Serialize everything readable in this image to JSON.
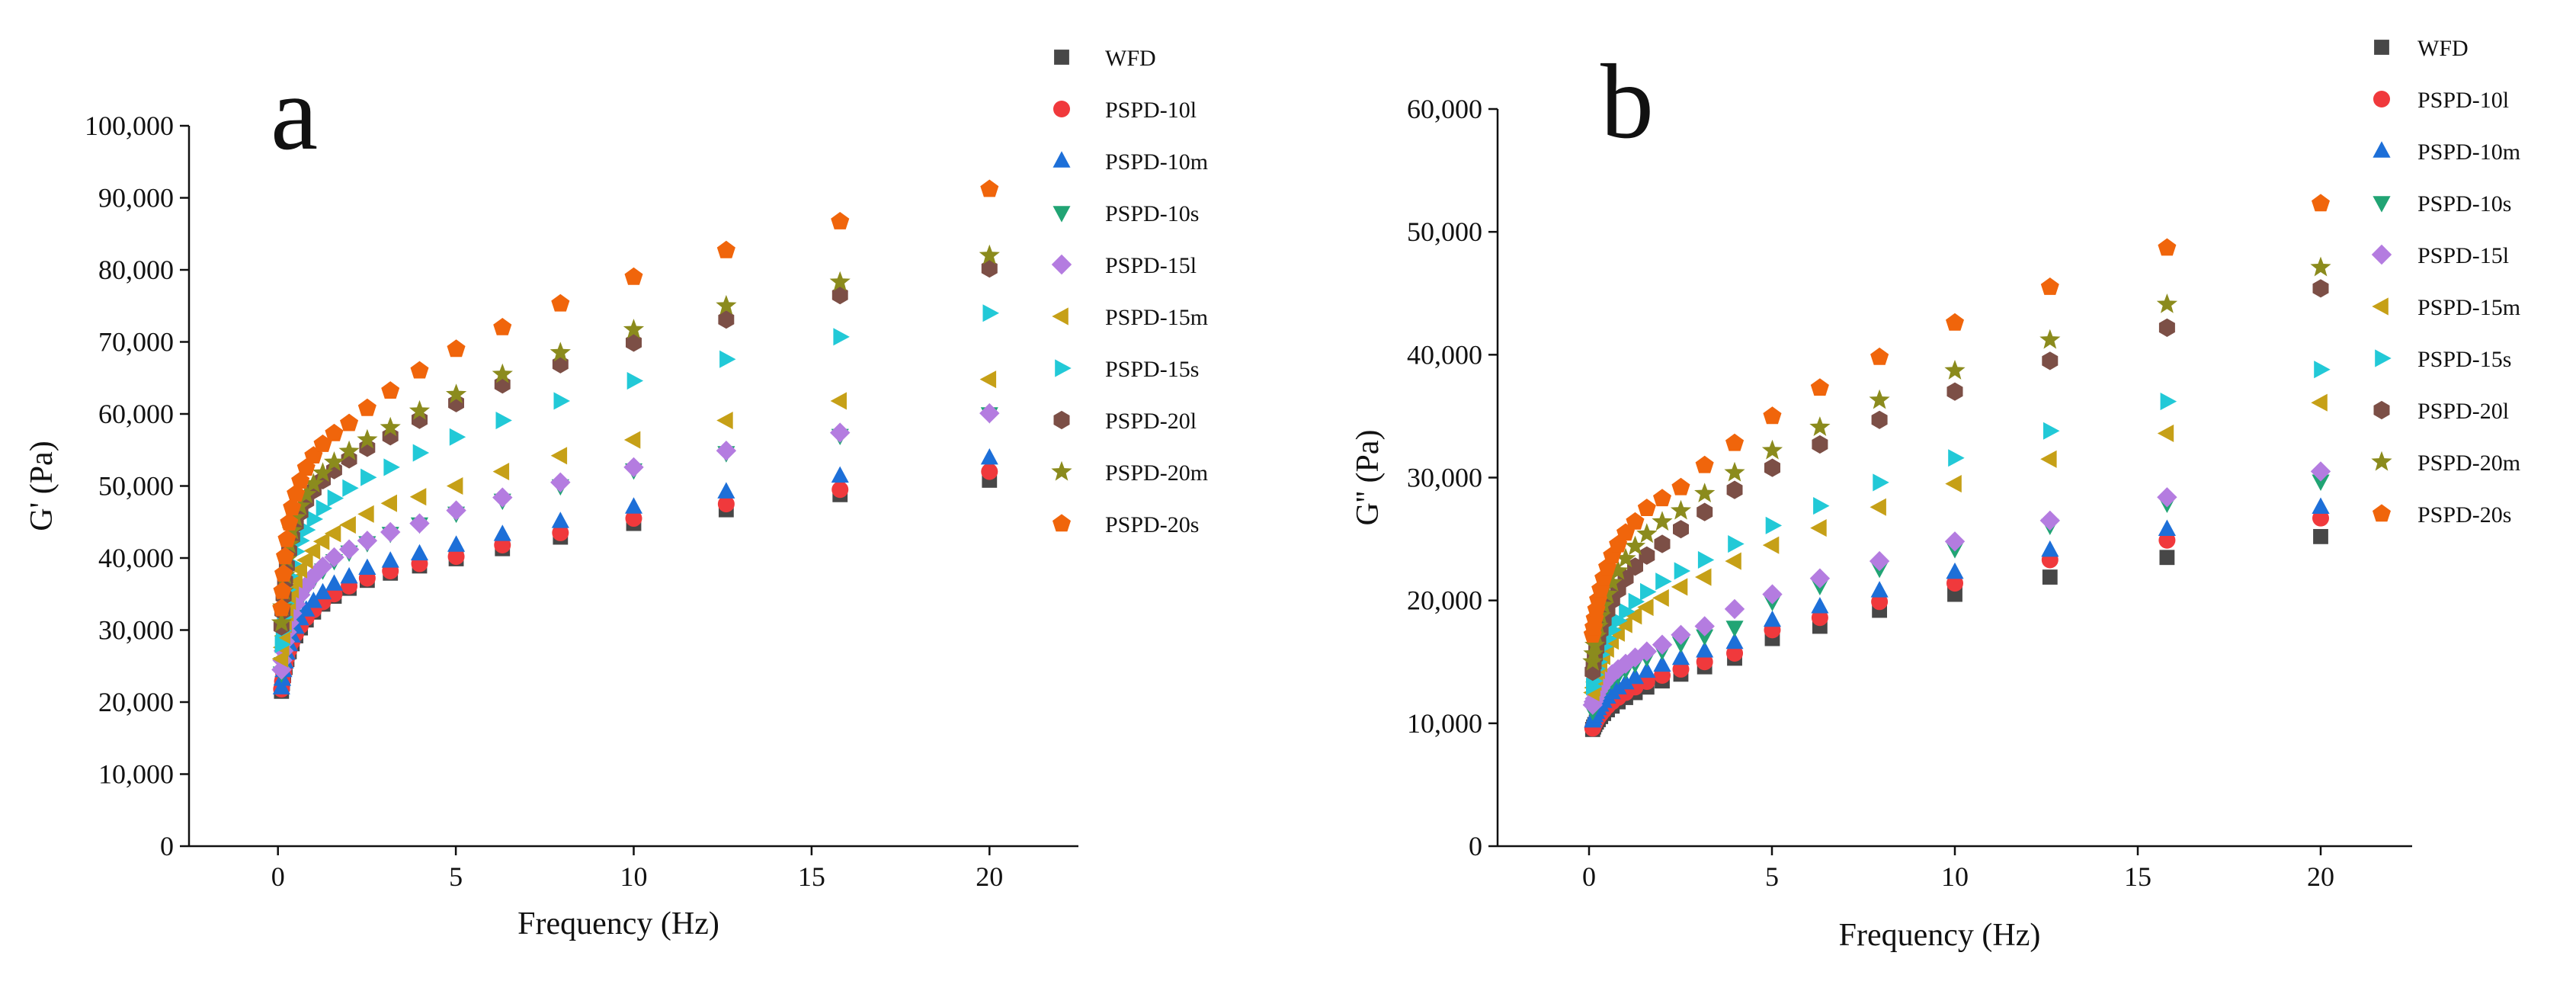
{
  "figure": {
    "background": "#ffffff"
  },
  "chart_data": [
    {
      "type": "scatter",
      "panel_label": "a",
      "xlabel": "Frequency (Hz)",
      "ylabel": "G' (Pa)",
      "xlim": [
        -2.5,
        22.5
      ],
      "ylim": [
        0,
        100000
      ],
      "xticks": [
        0,
        5,
        10,
        15,
        20
      ],
      "yticks": [
        0,
        10000,
        20000,
        30000,
        40000,
        50000,
        60000,
        70000,
        80000,
        90000,
        100000
      ],
      "xtick_labels": [
        "0",
        "5",
        "10",
        "15",
        "20"
      ],
      "ytick_labels": [
        "0",
        "10,000",
        "20,000",
        "30,000",
        "40,000",
        "50,000",
        "60,000",
        "70,000",
        "80,000",
        "90,000",
        "100,000"
      ],
      "grid": false,
      "legend_position": "top-right",
      "x": [
        0.1,
        0.126,
        0.158,
        0.2,
        0.251,
        0.316,
        0.398,
        0.501,
        0.631,
        0.794,
        1.0,
        1.26,
        1.58,
        2.0,
        2.51,
        3.16,
        3.98,
        5.01,
        6.31,
        7.94,
        10.0,
        12.6,
        15.8,
        20.0
      ],
      "series": [
        {
          "name": "WFD",
          "marker": "square",
          "color": "#474747",
          "values": [
            21500,
            22600,
            23700,
            24800,
            25900,
            27000,
            28100,
            29200,
            30300,
            31400,
            32500,
            33600,
            34700,
            35800,
            36900,
            37900,
            38900,
            39900,
            41300,
            42900,
            44800,
            46700,
            48800,
            50800
          ]
        },
        {
          "name": "PSPD-10l",
          "marker": "circle",
          "color": "#f0393c",
          "values": [
            21800,
            22900,
            24000,
            25100,
            26200,
            27300,
            28400,
            29500,
            30600,
            31700,
            32800,
            33900,
            35000,
            36100,
            37200,
            38200,
            39200,
            40200,
            41800,
            43500,
            45500,
            47500,
            49500,
            52000
          ]
        },
        {
          "name": "PSPD-10m",
          "marker": "triangle-up",
          "color": "#1d6fd8",
          "values": [
            22000,
            23200,
            24400,
            25600,
            26800,
            28000,
            29200,
            30400,
            31600,
            32800,
            34000,
            35200,
            36400,
            37400,
            38600,
            39600,
            40600,
            41800,
            43300,
            45100,
            47100,
            49200,
            51400,
            53900
          ]
        },
        {
          "name": "PSPD-10s",
          "marker": "triangle-down",
          "color": "#21a474",
          "values": [
            24000,
            25300,
            26600,
            27900,
            29200,
            30500,
            31800,
            33100,
            34400,
            35700,
            37000,
            38300,
            39600,
            40800,
            42100,
            43400,
            44700,
            46200,
            48000,
            50000,
            52200,
            54600,
            57000,
            60000
          ]
        },
        {
          "name": "PSPD-15l",
          "marker": "diamond",
          "color": "#b47ce0",
          "values": [
            24500,
            25800,
            27100,
            28400,
            29700,
            31000,
            32300,
            33600,
            34900,
            36200,
            37500,
            38800,
            40100,
            41200,
            42400,
            43600,
            44800,
            46600,
            48400,
            50500,
            52600,
            54900,
            57400,
            60100
          ]
        },
        {
          "name": "PSPD-15m",
          "marker": "triangle-left",
          "color": "#c6a017",
          "values": [
            26000,
            27600,
            29200,
            30800,
            32400,
            34000,
            35600,
            37000,
            38400,
            39700,
            41000,
            42300,
            43400,
            44600,
            46100,
            47600,
            48500,
            50000,
            52000,
            54200,
            56400,
            59100,
            61800,
            64800
          ]
        },
        {
          "name": "PSPD-15s",
          "marker": "triangle-right",
          "color": "#22c9d7",
          "values": [
            28000,
            29900,
            31800,
            33700,
            35600,
            37500,
            39200,
            40900,
            42400,
            43900,
            45400,
            46900,
            48300,
            49700,
            51200,
            52600,
            54600,
            56800,
            59100,
            61800,
            64600,
            67600,
            70700,
            74000
          ]
        },
        {
          "name": "PSPD-20l",
          "marker": "hexagon",
          "color": "#7c4f46",
          "values": [
            30500,
            32600,
            34700,
            36800,
            38900,
            41000,
            42900,
            44700,
            46300,
            47900,
            49400,
            50800,
            52200,
            53700,
            55300,
            56900,
            59200,
            61500,
            64100,
            66900,
            69900,
            73100,
            76500,
            80200
          ]
        },
        {
          "name": "PSPD-20m",
          "marker": "star",
          "color": "#8b8b1d",
          "values": [
            31000,
            33200,
            35400,
            37600,
            39800,
            41900,
            43800,
            45600,
            47200,
            48800,
            50300,
            51800,
            53300,
            54800,
            56400,
            58100,
            60400,
            62700,
            65500,
            68500,
            71700,
            75000,
            78300,
            82000
          ]
        },
        {
          "name": "PSPD-20s",
          "marker": "pentagon",
          "color": "#f0650b",
          "values": [
            33000,
            35400,
            37800,
            40200,
            42600,
            44900,
            47000,
            48900,
            50700,
            52500,
            54200,
            55800,
            57300,
            58700,
            60800,
            63200,
            66000,
            69000,
            72000,
            75300,
            79000,
            82700,
            86700,
            91200
          ]
        }
      ]
    },
    {
      "type": "scatter",
      "panel_label": "b",
      "xlabel": "Frequency (Hz)",
      "ylabel": "G'' (Pa)",
      "xlim": [
        -2.5,
        22.5
      ],
      "ylim": [
        0,
        60000
      ],
      "xticks": [
        0,
        5,
        10,
        15,
        20
      ],
      "yticks": [
        0,
        10000,
        20000,
        30000,
        40000,
        50000,
        60000
      ],
      "xtick_labels": [
        "0",
        "5",
        "10",
        "15",
        "20"
      ],
      "ytick_labels": [
        "0",
        "10,000",
        "20,000",
        "30,000",
        "40,000",
        "50,000",
        "60,000"
      ],
      "grid": false,
      "legend_position": "top-right",
      "x": [
        0.1,
        0.126,
        0.158,
        0.2,
        0.251,
        0.316,
        0.398,
        0.501,
        0.631,
        0.794,
        1.0,
        1.26,
        1.58,
        2.0,
        2.51,
        3.16,
        3.98,
        5.01,
        6.31,
        7.94,
        10.0,
        12.6,
        15.8,
        20.0
      ],
      "series": [
        {
          "name": "WFD",
          "marker": "square",
          "color": "#474747",
          "values": [
            9500,
            9700,
            9900,
            10100,
            10300,
            10550,
            10800,
            11100,
            11400,
            11750,
            12100,
            12500,
            12950,
            13450,
            14000,
            14600,
            15300,
            16900,
            17900,
            19200,
            20500,
            21900,
            23500,
            25200
          ]
        },
        {
          "name": "PSPD-10l",
          "marker": "circle",
          "color": "#f0393c",
          "values": [
            9600,
            9800,
            10000,
            10250,
            10500,
            10750,
            11050,
            11400,
            11750,
            12100,
            12500,
            12950,
            13400,
            13900,
            14400,
            15000,
            15700,
            17600,
            18600,
            19900,
            21400,
            23300,
            24900,
            26700
          ]
        },
        {
          "name": "PSPD-10m",
          "marker": "triangle-up",
          "color": "#1d6fd8",
          "values": [
            10200,
            10400,
            10650,
            10900,
            11200,
            11500,
            11800,
            12150,
            12500,
            12900,
            13300,
            13750,
            14250,
            14750,
            15300,
            15900,
            16600,
            18400,
            19500,
            20800,
            22300,
            24100,
            25800,
            27600
          ]
        },
        {
          "name": "PSPD-10s",
          "marker": "triangle-down",
          "color": "#21a474",
          "values": [
            11000,
            11250,
            11500,
            11800,
            12100,
            12400,
            12750,
            13100,
            13500,
            13900,
            14350,
            14850,
            15350,
            15900,
            16500,
            17100,
            17800,
            19900,
            21200,
            22600,
            24200,
            26100,
            27900,
            29700
          ]
        },
        {
          "name": "PSPD-15l",
          "marker": "diamond",
          "color": "#b47ce0",
          "values": [
            11500,
            11750,
            12000,
            12300,
            12600,
            12900,
            13250,
            13600,
            14000,
            14400,
            14850,
            15350,
            15850,
            16400,
            17200,
            17900,
            19300,
            20500,
            21800,
            23200,
            24800,
            26500,
            28400,
            30500
          ]
        },
        {
          "name": "PSPD-15m",
          "marker": "triangle-left",
          "color": "#c6a017",
          "values": [
            12500,
            12900,
            13350,
            13800,
            14300,
            14850,
            15450,
            16050,
            16700,
            17350,
            18050,
            18750,
            19450,
            20200,
            21100,
            21900,
            23200,
            24500,
            25900,
            27600,
            29500,
            31500,
            33600,
            36100
          ]
        },
        {
          "name": "PSPD-15s",
          "marker": "triangle-right",
          "color": "#22c9d7",
          "values": [
            13000,
            13450,
            13950,
            14450,
            15000,
            15600,
            16250,
            16900,
            17600,
            18350,
            19100,
            19900,
            20700,
            21550,
            22400,
            23300,
            24600,
            26100,
            27700,
            29600,
            31600,
            33800,
            36200,
            38800
          ]
        },
        {
          "name": "PSPD-20l",
          "marker": "hexagon",
          "color": "#7c4f46",
          "values": [
            14200,
            14800,
            15450,
            16100,
            16800,
            17550,
            18350,
            19150,
            20000,
            20850,
            21800,
            22750,
            23650,
            24600,
            25800,
            27200,
            29000,
            30800,
            32700,
            34700,
            37000,
            39500,
            42200,
            45400
          ]
        },
        {
          "name": "PSPD-20m",
          "marker": "star",
          "color": "#8b8b1d",
          "values": [
            15000,
            15650,
            16350,
            17100,
            17900,
            18750,
            19600,
            20500,
            21450,
            22400,
            23400,
            24400,
            25400,
            26400,
            27300,
            28700,
            30400,
            32200,
            34100,
            36300,
            38700,
            41200,
            44100,
            47100
          ]
        },
        {
          "name": "PSPD-20s",
          "marker": "pentagon",
          "color": "#f0650b",
          "values": [
            17200,
            17800,
            18500,
            19250,
            20050,
            20900,
            21800,
            22700,
            23650,
            24550,
            25500,
            26400,
            27500,
            28300,
            29200,
            31000,
            32800,
            35000,
            37300,
            39800,
            42600,
            45500,
            48700,
            52300
          ]
        }
      ]
    }
  ]
}
